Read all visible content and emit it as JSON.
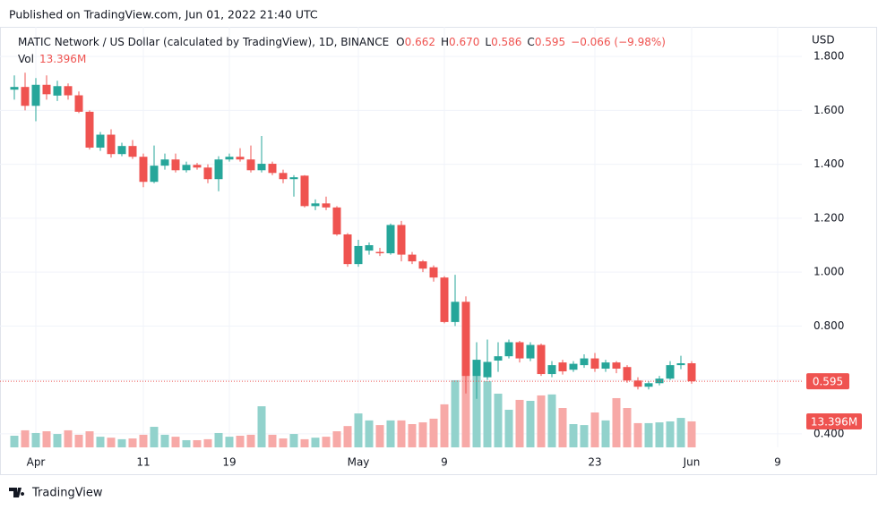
{
  "header": {
    "published": "Published on TradingView.com, Jun 01, 2022 21:40 UTC",
    "brand": "TradingView"
  },
  "chart_data": {
    "type": "candlestick",
    "title": "MATIC Network / US Dollar (calculated by TradingView), 1D, BINANCE",
    "legend_values": {
      "open_label": "O",
      "open": "0.662",
      "high_label": "H",
      "high": "0.670",
      "low_label": "L",
      "low": "0.586",
      "close_label": "C",
      "close": "0.595",
      "change": "−0.066 (−9.98%)"
    },
    "volume_title": "Vol",
    "volume_value_label": "13.396M",
    "currency": "USD",
    "last_price_label": "0.595",
    "last_volume_label": "13.396M",
    "up_color": "#26a69a",
    "down_color": "#ef5350",
    "volume_up_color": "#92d2cc",
    "volume_down_color": "#f7a9a7",
    "x": [
      "2022-03-30",
      "2022-03-31",
      "2022-04-01",
      "2022-04-02",
      "2022-04-03",
      "2022-04-04",
      "2022-04-05",
      "2022-04-06",
      "2022-04-07",
      "2022-04-08",
      "2022-04-09",
      "2022-04-10",
      "2022-04-11",
      "2022-04-12",
      "2022-04-13",
      "2022-04-14",
      "2022-04-15",
      "2022-04-16",
      "2022-04-17",
      "2022-04-18",
      "2022-04-19",
      "2022-04-20",
      "2022-04-21",
      "2022-04-22",
      "2022-04-23",
      "2022-04-24",
      "2022-04-25",
      "2022-04-26",
      "2022-04-27",
      "2022-04-28",
      "2022-04-29",
      "2022-04-30",
      "2022-05-01",
      "2022-05-02",
      "2022-05-03",
      "2022-05-04",
      "2022-05-05",
      "2022-05-06",
      "2022-05-07",
      "2022-05-08",
      "2022-05-09",
      "2022-05-10",
      "2022-05-11",
      "2022-05-12",
      "2022-05-13",
      "2022-05-14",
      "2022-05-15",
      "2022-05-16",
      "2022-05-17",
      "2022-05-18",
      "2022-05-19",
      "2022-05-20",
      "2022-05-21",
      "2022-05-22",
      "2022-05-23",
      "2022-05-24",
      "2022-05-25",
      "2022-05-26",
      "2022-05-27",
      "2022-05-28",
      "2022-05-29",
      "2022-05-30",
      "2022-05-31",
      "2022-06-01"
    ],
    "open": [
      1.677,
      1.687,
      1.617,
      1.695,
      1.655,
      1.69,
      1.656,
      1.595,
      1.462,
      1.51,
      1.438,
      1.468,
      1.428,
      1.335,
      1.395,
      1.418,
      1.378,
      1.398,
      1.388,
      1.345,
      1.418,
      1.428,
      1.418,
      1.378,
      1.402,
      1.368,
      1.345,
      1.358,
      1.245,
      1.255,
      1.24,
      1.14,
      1.03,
      1.08,
      1.075,
      1.07,
      1.175,
      1.065,
      1.04,
      1.018,
      0.98,
      0.815,
      0.89,
      0.615,
      0.61,
      0.672,
      0.688,
      0.74,
      0.68,
      0.73,
      0.622,
      0.665,
      0.638,
      0.655,
      0.68,
      0.642,
      0.665,
      0.648,
      0.598,
      0.575,
      0.588,
      0.605,
      0.655,
      0.662
    ],
    "high": [
      1.73,
      1.74,
      1.72,
      1.73,
      1.71,
      1.7,
      1.67,
      1.6,
      1.52,
      1.53,
      1.48,
      1.49,
      1.44,
      1.47,
      1.44,
      1.44,
      1.41,
      1.405,
      1.4,
      1.43,
      1.44,
      1.46,
      1.47,
      1.505,
      1.41,
      1.38,
      1.36,
      1.36,
      1.27,
      1.28,
      1.245,
      1.145,
      1.12,
      1.11,
      1.09,
      1.18,
      1.19,
      1.075,
      1.045,
      1.025,
      0.985,
      0.99,
      0.91,
      0.74,
      0.75,
      0.74,
      0.75,
      0.745,
      0.74,
      0.735,
      0.67,
      0.675,
      0.67,
      0.695,
      0.7,
      0.675,
      0.67,
      0.655,
      0.61,
      0.595,
      0.615,
      0.67,
      0.69,
      0.67
    ],
    "low": [
      1.64,
      1.6,
      1.56,
      1.64,
      1.635,
      1.64,
      1.59,
      1.455,
      1.45,
      1.425,
      1.43,
      1.42,
      1.315,
      1.33,
      1.38,
      1.37,
      1.37,
      1.38,
      1.33,
      1.3,
      1.41,
      1.41,
      1.37,
      1.37,
      1.36,
      1.33,
      1.28,
      1.24,
      1.23,
      1.23,
      1.135,
      1.02,
      1.02,
      1.065,
      1.06,
      1.065,
      1.04,
      1.03,
      1.0,
      0.965,
      0.81,
      0.8,
      0.55,
      0.53,
      0.6,
      0.63,
      0.68,
      0.665,
      0.67,
      0.615,
      0.61,
      0.62,
      0.63,
      0.645,
      0.63,
      0.63,
      0.625,
      0.59,
      0.565,
      0.565,
      0.58,
      0.6,
      0.64,
      0.586
    ],
    "close": [
      1.687,
      1.617,
      1.695,
      1.66,
      1.69,
      1.656,
      1.595,
      1.462,
      1.51,
      1.438,
      1.468,
      1.428,
      1.335,
      1.395,
      1.418,
      1.378,
      1.398,
      1.388,
      1.345,
      1.418,
      1.428,
      1.418,
      1.378,
      1.402,
      1.368,
      1.345,
      1.352,
      1.245,
      1.255,
      1.24,
      1.14,
      1.03,
      1.097,
      1.1,
      1.07,
      1.175,
      1.065,
      1.04,
      1.013,
      0.98,
      0.815,
      0.89,
      0.615,
      0.675,
      0.667,
      0.688,
      0.74,
      0.68,
      0.73,
      0.622,
      0.655,
      0.632,
      0.66,
      0.68,
      0.642,
      0.665,
      0.642,
      0.598,
      0.575,
      0.588,
      0.605,
      0.655,
      0.662,
      0.595
    ],
    "volume": [
      6000000,
      8800000,
      7400000,
      8300000,
      6900000,
      8800000,
      6500000,
      8300000,
      5500000,
      5000000,
      4200000,
      4600000,
      6500000,
      10600000,
      6500000,
      5500000,
      3700000,
      3700000,
      4200000,
      7400000,
      5500000,
      6000000,
      6500000,
      21200000,
      6500000,
      4600000,
      6900000,
      4200000,
      5000000,
      5500000,
      8300000,
      11000000,
      17500000,
      13900000,
      11500000,
      13900000,
      13900000,
      12000000,
      12900000,
      14800000,
      22200000,
      34600000,
      46200000,
      42500000,
      34200000,
      27700000,
      19400000,
      24500000,
      24000000,
      26800000,
      27300000,
      20300000,
      12000000,
      11500000,
      18000000,
      13900000,
      25400000,
      20300000,
      12500000,
      12500000,
      12900000,
      13400000,
      15200000,
      13396000
    ],
    "xlim": [
      "2022-03-28",
      "2022-06-12"
    ],
    "xticks": [
      {
        "value": "2022-04-01",
        "label": "Apr"
      },
      {
        "value": "2022-04-11",
        "label": "11"
      },
      {
        "value": "2022-04-19",
        "label": "19"
      },
      {
        "value": "2022-05-01",
        "label": "May"
      },
      {
        "value": "2022-05-09",
        "label": "9"
      },
      {
        "value": "2022-05-23",
        "label": "23"
      },
      {
        "value": "2022-06-01",
        "label": "Jun"
      },
      {
        "value": "2022-06-09",
        "label": "9"
      }
    ],
    "ylim": [
      0.35,
      1.91
    ],
    "yticks": [
      {
        "value": 0.4,
        "label": "0.400"
      },
      {
        "value": 0.6,
        "label": "0.600"
      },
      {
        "value": 0.8,
        "label": "0.800"
      },
      {
        "value": 1.0,
        "label": "1.000"
      },
      {
        "value": 1.2,
        "label": "1.200"
      },
      {
        "value": 1.4,
        "label": "1.400"
      },
      {
        "value": 1.6,
        "label": "1.600"
      },
      {
        "value": 1.8,
        "label": "1.800"
      }
    ],
    "volume_ylim": [
      0,
      60000000
    ],
    "grid": true
  }
}
